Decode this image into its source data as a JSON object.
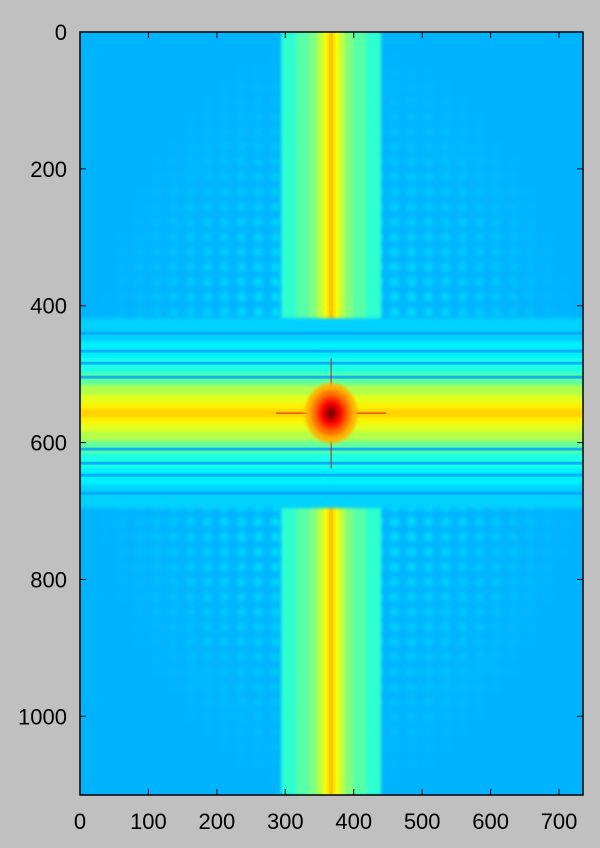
{
  "chart_data": {
    "type": "heatmap",
    "title": "",
    "xlabel": "",
    "ylabel": "",
    "xlim": [
      0,
      735
    ],
    "ylim": [
      1115,
      0
    ],
    "x_ticks": [
      0,
      100,
      200,
      300,
      400,
      500,
      600,
      700
    ],
    "y_ticks": [
      0,
      200,
      400,
      600,
      800,
      1000
    ],
    "x_tick_labels": [
      "0",
      "100",
      "200",
      "300",
      "400",
      "500",
      "600",
      "700"
    ],
    "y_tick_labels": [
      "0",
      "200",
      "400",
      "600",
      "800",
      "1000"
    ],
    "colormap": "jet",
    "grid": false,
    "legend": "none",
    "peak": {
      "x": 367,
      "y": 557
    },
    "vertical_band_center_x": 367,
    "horizontal_band_center_y": 557,
    "colors": {
      "background": "#c0c0c0",
      "frame": "#000000",
      "low": "#2a8cff",
      "mid": "#b4ff52",
      "high": "#ff1e00"
    }
  }
}
